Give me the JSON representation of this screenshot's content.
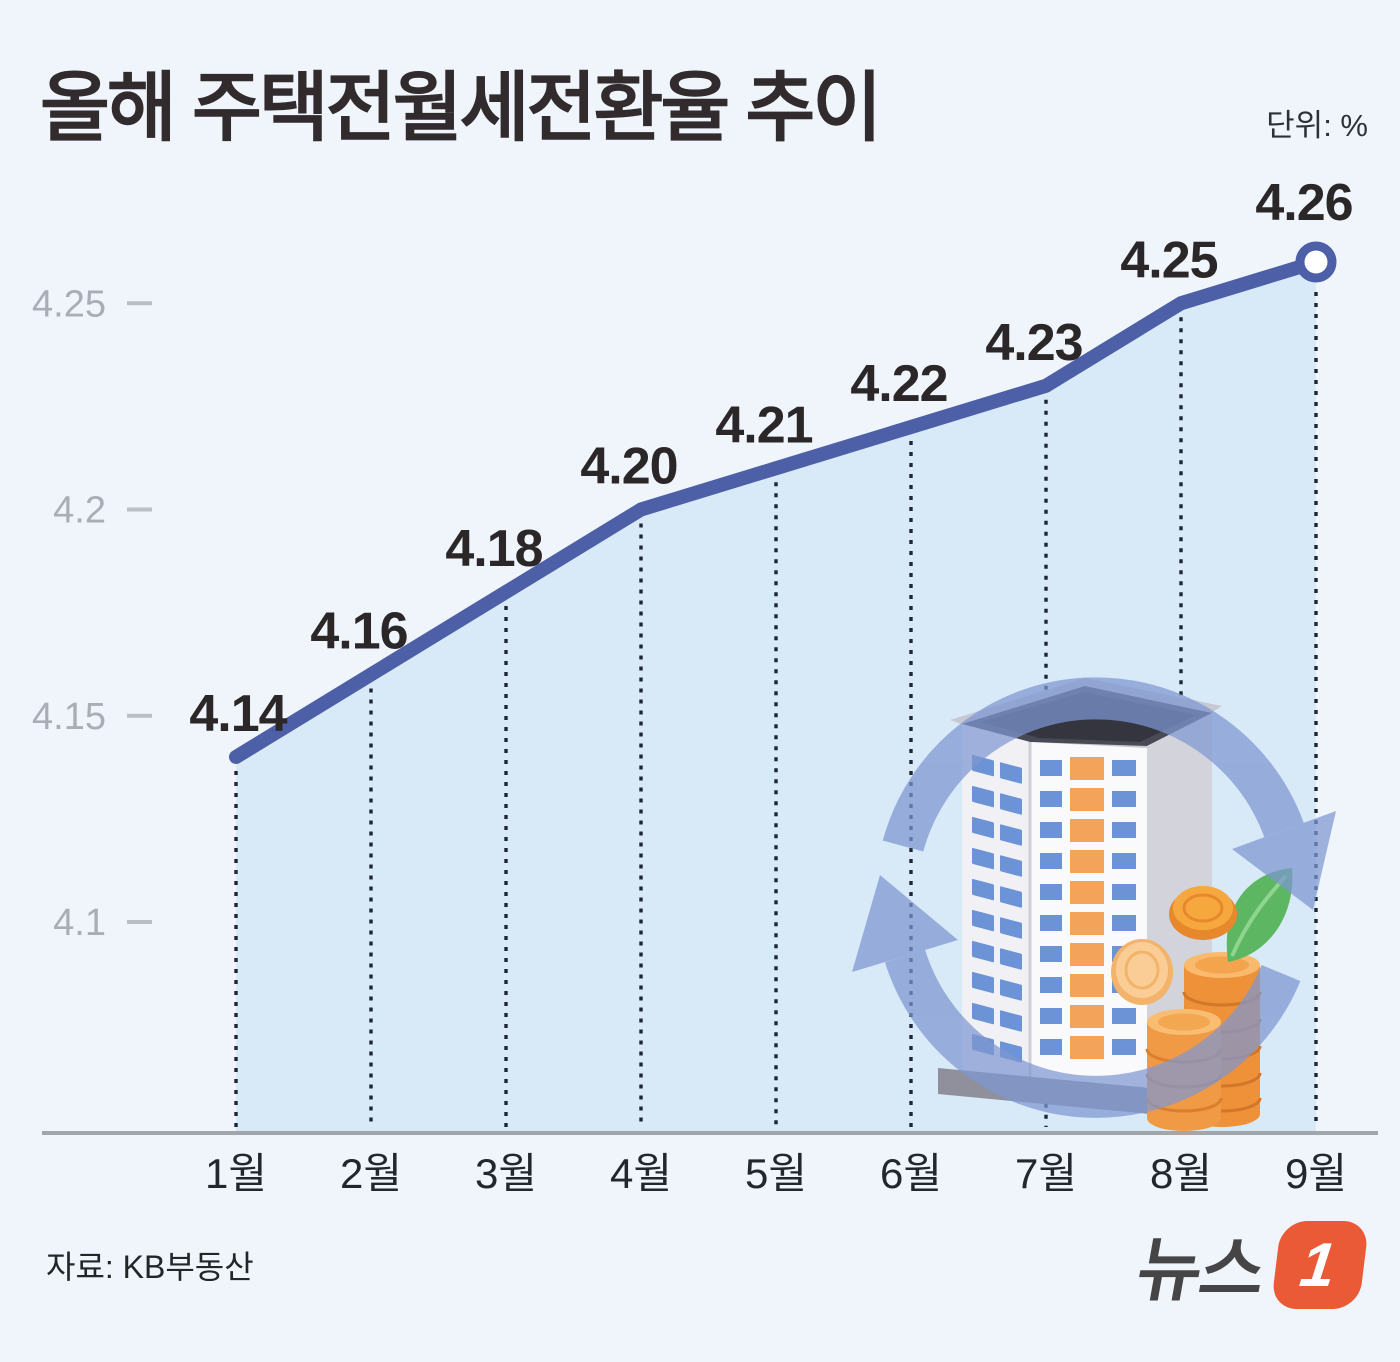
{
  "header": {
    "title": "올해 주택전월세전환율 추이",
    "unit_label": "단위: %"
  },
  "chart_data": {
    "type": "line",
    "title": "올해 주택전월세전환율 추이",
    "unit": "%",
    "categories": [
      "1월",
      "2월",
      "3월",
      "4월",
      "5월",
      "6월",
      "7월",
      "8월",
      "9월"
    ],
    "values": [
      4.14,
      4.16,
      4.18,
      4.2,
      4.21,
      4.22,
      4.23,
      4.25,
      4.26
    ],
    "value_labels": [
      "4.14",
      "4.16",
      "4.18",
      "4.20",
      "4.21",
      "4.22",
      "4.23",
      "4.25",
      "4.26"
    ],
    "yticks": [
      4.25,
      4.2,
      4.15,
      4.1
    ],
    "ytick_labels": [
      "4.25",
      "4.2",
      "4.15",
      "4.1"
    ],
    "ylim": [
      4.05,
      4.3
    ],
    "xlabel": "",
    "ylabel": "",
    "grid": "vertical dotted drop lines at each month",
    "legend": "none",
    "marker": "open circle on last point",
    "line_color": "#4c5fa7",
    "area_color": "#d8e9f7",
    "drop_line_color": "#1d2733",
    "axis_color": "#a0a6ac",
    "value_label_color": "#2b2729",
    "tick_text_color": "#a8aeb5",
    "month_text_color": "#22272c"
  },
  "footer": {
    "source_label": "자료: KB부동산",
    "logo_text": "뉴스",
    "logo_number": "1",
    "logo_color": "#ea5a37"
  }
}
